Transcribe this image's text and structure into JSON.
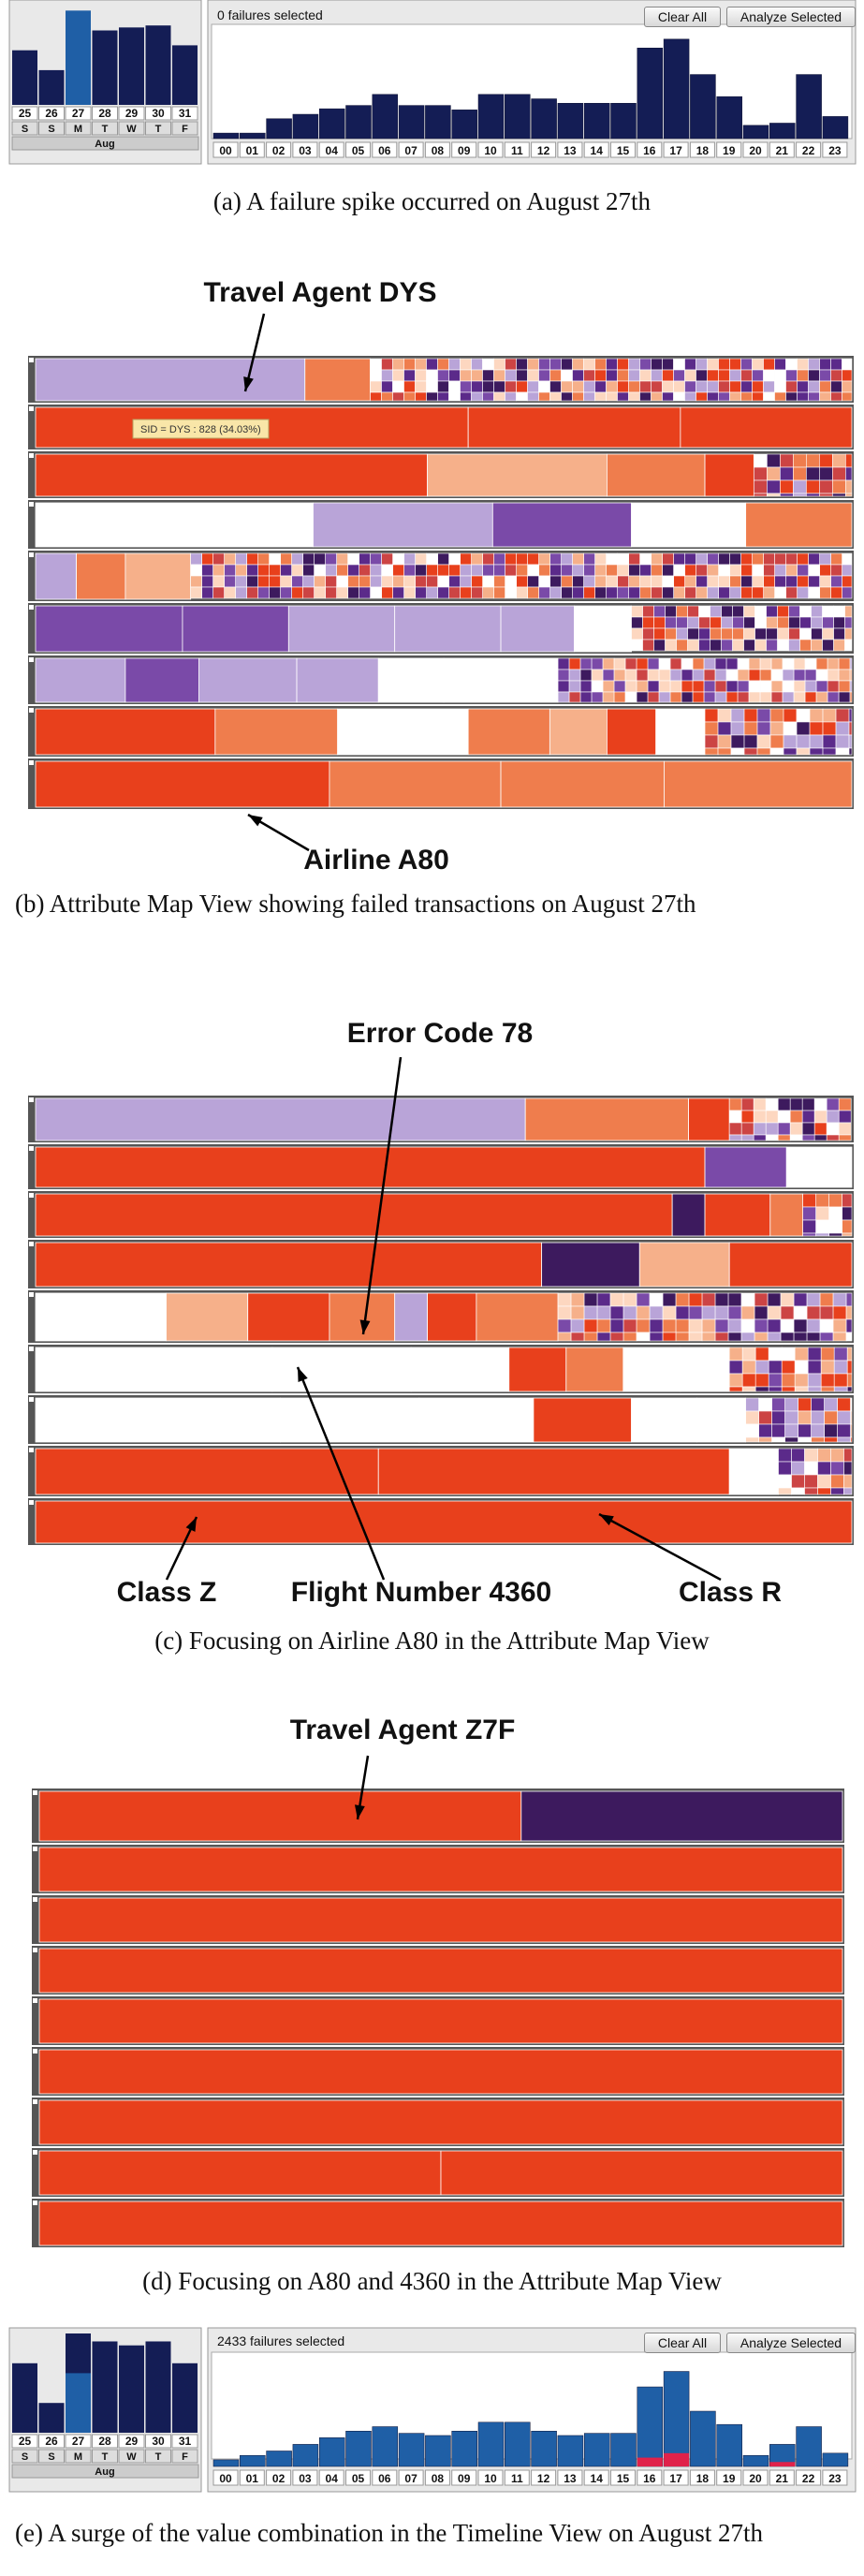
{
  "captions": {
    "a": "(a)  A failure spike occurred on August 27th",
    "b": "(b)  Attribute Map View showing failed transactions on August 27th",
    "c": "(c)  Focusing on Airline A80 in the Attribute Map View",
    "d": "(d)  Focusing on A80 and 4360 in the Attribute Map View",
    "e": "(e)  A surge of the value combination in the Timeline View on August 27th"
  },
  "timeline_a": {
    "status": "0 failures selected",
    "clear_label": "Clear All",
    "analyze_label": "Analyze Selected",
    "month": "Aug"
  },
  "timeline_e": {
    "status": "2433 failures selected",
    "clear_label": "Clear All",
    "analyze_label": "Analyze Selected",
    "month": "Aug"
  },
  "annotations": {
    "b_top": "Travel Agent DYS",
    "b_bottom": "Airline A80",
    "b_tooltip": "SID = DYS : 828 (34.03%)",
    "c_top": "Error Code 78",
    "c_class_z": "Class Z",
    "c_flight": "Flight Number 4360",
    "c_class_r": "Class R",
    "d_top": "Travel Agent Z7F"
  },
  "chart_data": [
    {
      "type": "bar",
      "title": "",
      "categories": [
        "25",
        "26",
        "27",
        "28",
        "29",
        "30",
        "31"
      ],
      "weekdays": [
        "S",
        "S",
        "M",
        "T",
        "W",
        "T",
        "F"
      ],
      "values": [
        55,
        35,
        95,
        75,
        78,
        80,
        60
      ],
      "highlight": "27"
    },
    {
      "type": "bar",
      "title": "",
      "categories": [
        "00",
        "01",
        "02",
        "03",
        "04",
        "05",
        "06",
        "07",
        "08",
        "09",
        "10",
        "11",
        "12",
        "13",
        "14",
        "15",
        "16",
        "17",
        "18",
        "19",
        "20",
        "21",
        "22",
        "23"
      ],
      "values": [
        5,
        5,
        18,
        22,
        27,
        30,
        40,
        30,
        30,
        26,
        40,
        40,
        36,
        32,
        32,
        32,
        82,
        90,
        58,
        38,
        12,
        14,
        58,
        20
      ]
    },
    {
      "type": "bar",
      "title": "",
      "categories": [
        "25",
        "26",
        "27",
        "28",
        "29",
        "30",
        "31"
      ],
      "weekdays": [
        "S",
        "S",
        "M",
        "T",
        "W",
        "T",
        "F"
      ],
      "series": [
        {
          "values": [
            70,
            30,
            100,
            92,
            88,
            92,
            70
          ]
        },
        {
          "values": [
            0,
            0,
            60,
            0,
            0,
            0,
            0
          ]
        }
      ]
    },
    {
      "type": "bar",
      "title": "",
      "categories": [
        "00",
        "01",
        "02",
        "03",
        "04",
        "05",
        "06",
        "07",
        "08",
        "09",
        "10",
        "11",
        "12",
        "13",
        "14",
        "15",
        "16",
        "17",
        "18",
        "19",
        "20",
        "21",
        "22",
        "23"
      ],
      "series": [
        {
          "values": [
            6,
            10,
            14,
            20,
            26,
            32,
            36,
            30,
            28,
            32,
            40,
            40,
            32,
            28,
            30,
            30,
            72,
            86,
            50,
            38,
            10,
            20,
            36,
            12
          ]
        },
        {
          "values": [
            0,
            0,
            0,
            0,
            0,
            0,
            0,
            0,
            0,
            0,
            0,
            0,
            0,
            0,
            0,
            0,
            8,
            12,
            0,
            0,
            0,
            4,
            0,
            0
          ]
        }
      ]
    }
  ]
}
